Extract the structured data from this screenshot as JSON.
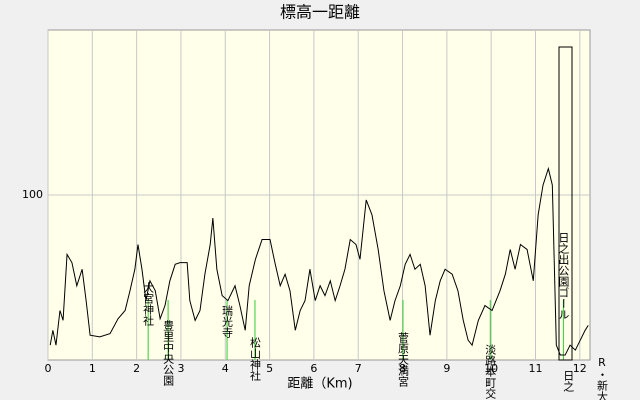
{
  "chart_data": {
    "type": "line",
    "title": "標高一距離",
    "x_label": "距離（Km)",
    "x": [
      0.05,
      0.11,
      0.18,
      0.27,
      0.34,
      0.43,
      0.54,
      0.65,
      0.77,
      0.86,
      0.95,
      1.17,
      1.4,
      1.58,
      1.74,
      1.85,
      1.96,
      2.03,
      2.12,
      2.21,
      2.3,
      2.42,
      2.53,
      2.64,
      2.75,
      2.87,
      2.98,
      3.14,
      3.2,
      3.32,
      3.43,
      3.54,
      3.66,
      3.72,
      3.81,
      3.93,
      4.06,
      4.22,
      4.33,
      4.45,
      4.54,
      4.68,
      4.83,
      5.01,
      5.12,
      5.24,
      5.35,
      5.46,
      5.58,
      5.69,
      5.8,
      5.91,
      6.03,
      6.14,
      6.25,
      6.37,
      6.48,
      6.59,
      6.7,
      6.82,
      6.95,
      7.04,
      7.18,
      7.31,
      7.45,
      7.58,
      7.72,
      7.83,
      7.95,
      8.06,
      8.17,
      8.28,
      8.4,
      8.51,
      8.62,
      8.74,
      8.85,
      8.96,
      9.12,
      9.25,
      9.37,
      9.48,
      9.57,
      9.71,
      9.86,
      10.02,
      10.2,
      10.32,
      10.43,
      10.54,
      10.66,
      10.81,
      10.95,
      11.06,
      11.17,
      11.29,
      11.38,
      11.47,
      11.56,
      11.67,
      11.78,
      11.9,
      12.01,
      12.12,
      12.19
    ],
    "values": [
      9,
      18,
      9,
      30,
      24,
      64,
      59,
      45,
      55,
      36,
      15,
      14,
      16,
      25,
      30,
      42,
      55,
      70,
      55,
      36,
      48,
      42,
      25,
      33,
      48,
      58,
      59,
      59,
      36,
      24,
      30,
      52,
      70,
      86,
      55,
      39,
      36,
      45,
      33,
      18,
      45,
      61,
      73,
      73,
      59,
      45,
      52,
      42,
      18,
      30,
      36,
      55,
      36,
      45,
      39,
      48,
      36,
      45,
      55,
      73,
      70,
      61,
      97,
      88,
      67,
      42,
      24,
      36,
      45,
      58,
      64,
      55,
      58,
      45,
      15,
      36,
      48,
      55,
      52,
      42,
      24,
      12,
      9,
      24,
      33,
      30,
      42,
      52,
      67,
      55,
      70,
      67,
      48,
      88,
      106,
      116,
      106,
      9,
      3,
      3,
      9,
      6,
      12,
      18,
      21
    ],
    "color": "#000000",
    "xlim": [
      0,
      12.23
    ],
    "ylim": [
      0,
      200
    ],
    "xticks": [
      0,
      1,
      2,
      3,
      4,
      5,
      6,
      7,
      8,
      9,
      10,
      11,
      12
    ],
    "yticks": [
      100
    ],
    "grid": true,
    "landmark_color": "#33cc33",
    "landmarks": [
      {
        "label": "大宮神社",
        "x": 2.26
      },
      {
        "label": "豊里中央公園",
        "x": 2.71
      },
      {
        "label": "瑞光寺",
        "x": 4.04
      },
      {
        "label": "松山神社",
        "x": 4.67
      },
      {
        "label": "菅原天満宮",
        "x": 8.01
      },
      {
        "label": "淡路本町交",
        "x": 9.98
      },
      {
        "label": "日之出公園ゴール",
        "x": 11.63
      },
      {
        "label": "日之",
        "x": 11.74
      },
      {
        "label": "R・新大",
        "x": 12.5
      }
    ]
  }
}
